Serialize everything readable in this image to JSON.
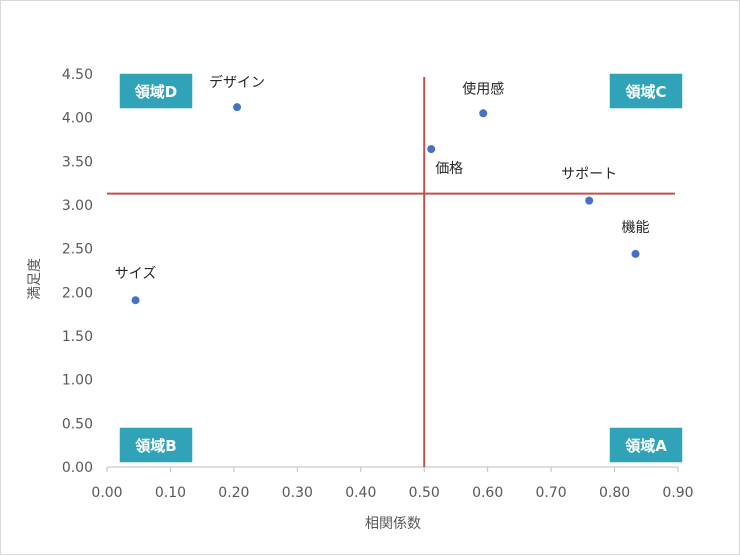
{
  "chart_data": {
    "type": "scatter",
    "title": "",
    "xlabel": "相関係数",
    "ylabel": "満足度",
    "xlim": [
      0,
      0.9
    ],
    "ylim": [
      0,
      4.5
    ],
    "x_ticks": [
      "0.00",
      "0.10",
      "0.20",
      "0.30",
      "0.40",
      "0.50",
      "0.60",
      "0.70",
      "0.80",
      "0.90"
    ],
    "y_ticks": [
      "0.00",
      "0.50",
      "1.00",
      "1.50",
      "2.00",
      "2.50",
      "3.00",
      "3.50",
      "4.00",
      "4.50"
    ],
    "grid": false,
    "point_color": "#4472c4",
    "points": [
      {
        "label": "デザイン",
        "x": 0.205,
        "y": 4.12
      },
      {
        "label": "使用感",
        "x": 0.593,
        "y": 4.05
      },
      {
        "label": "価格",
        "x": 0.511,
        "y": 3.64
      },
      {
        "label": "サポート",
        "x": 0.76,
        "y": 3.05
      },
      {
        "label": "機能",
        "x": 0.833,
        "y": 2.44
      },
      {
        "label": "サイズ",
        "x": 0.045,
        "y": 1.91
      }
    ],
    "reference_lines": {
      "x": 0.5,
      "y": 3.13,
      "color": "#c0504d"
    },
    "regions": {
      "fill": "#31a3b8",
      "top_left": "領域D",
      "top_right": "領域C",
      "bottom_left": "領域B",
      "bottom_right": "領域A"
    }
  }
}
